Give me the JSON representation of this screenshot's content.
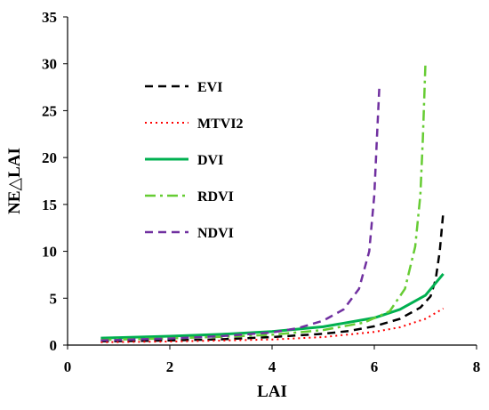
{
  "chart_data": {
    "type": "line",
    "title": "",
    "xlabel": "LAI",
    "ylabel": "NE△LAI",
    "xlim": [
      0,
      8
    ],
    "ylim": [
      0,
      35
    ],
    "xticks": [
      0,
      2,
      4,
      6,
      8
    ],
    "yticks": [
      0,
      5,
      10,
      15,
      20,
      25,
      30,
      35
    ],
    "grid": false,
    "legend_position": "upper-left",
    "series": [
      {
        "name": "EVI",
        "color": "#000000",
        "style": "dashed",
        "points": [
          [
            0.65,
            0.4
          ],
          [
            1,
            0.42
          ],
          [
            2,
            0.5
          ],
          [
            3,
            0.62
          ],
          [
            4,
            0.85
          ],
          [
            5,
            1.2
          ],
          [
            5.5,
            1.5
          ],
          [
            6,
            2.0
          ],
          [
            6.5,
            2.8
          ],
          [
            6.9,
            4.0
          ],
          [
            7.1,
            5.2
          ],
          [
            7.2,
            7.0
          ],
          [
            7.28,
            10.0
          ],
          [
            7.35,
            14.2
          ]
        ]
      },
      {
        "name": "MTVI2",
        "color": "#ff0000",
        "style": "dotted",
        "points": [
          [
            0.65,
            0.3
          ],
          [
            1,
            0.32
          ],
          [
            2,
            0.38
          ],
          [
            3,
            0.48
          ],
          [
            4,
            0.6
          ],
          [
            5,
            0.85
          ],
          [
            6,
            1.4
          ],
          [
            6.5,
            1.9
          ],
          [
            7,
            2.8
          ],
          [
            7.35,
            3.9
          ]
        ]
      },
      {
        "name": "DVI",
        "color": "#00b050",
        "style": "solid",
        "points": [
          [
            0.65,
            0.75
          ],
          [
            1,
            0.8
          ],
          [
            2,
            0.95
          ],
          [
            3,
            1.15
          ],
          [
            4,
            1.45
          ],
          [
            5,
            1.95
          ],
          [
            6,
            2.9
          ],
          [
            6.5,
            3.8
          ],
          [
            7,
            5.3
          ],
          [
            7.35,
            7.6
          ]
        ]
      },
      {
        "name": "RDVI",
        "color": "#66cc33",
        "style": "dashdot",
        "points": [
          [
            0.65,
            0.55
          ],
          [
            1,
            0.6
          ],
          [
            2,
            0.72
          ],
          [
            3,
            0.88
          ],
          [
            4,
            1.1
          ],
          [
            5,
            1.6
          ],
          [
            5.8,
            2.4
          ],
          [
            6.3,
            3.6
          ],
          [
            6.6,
            6.0
          ],
          [
            6.8,
            10.5
          ],
          [
            6.9,
            16.0
          ],
          [
            6.95,
            22.0
          ],
          [
            7.0,
            30.0
          ]
        ]
      },
      {
        "name": "NDVI",
        "color": "#7030a0",
        "style": "dashed",
        "points": [
          [
            0.65,
            0.5
          ],
          [
            1,
            0.55
          ],
          [
            2,
            0.7
          ],
          [
            3,
            0.95
          ],
          [
            4,
            1.35
          ],
          [
            4.5,
            1.8
          ],
          [
            5,
            2.6
          ],
          [
            5.4,
            3.8
          ],
          [
            5.7,
            6.0
          ],
          [
            5.9,
            10.0
          ],
          [
            6.0,
            16.0
          ],
          [
            6.05,
            22.0
          ],
          [
            6.1,
            27.8
          ]
        ]
      }
    ]
  }
}
